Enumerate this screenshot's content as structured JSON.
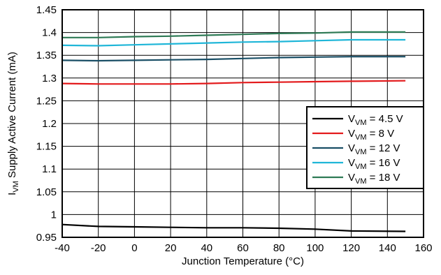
{
  "chart_data": {
    "type": "line",
    "xlabel": "Junction Temperature (°C)",
    "ylabel": {
      "prefix": "I",
      "sub": "VM",
      "rest": " Supply Active Current (mA)"
    },
    "xlim": [
      -40,
      160
    ],
    "ylim": [
      0.95,
      1.45
    ],
    "x_ticks": [
      -40,
      -20,
      0,
      20,
      40,
      60,
      80,
      100,
      120,
      140,
      160
    ],
    "y_ticks": [
      0.95,
      1,
      1.05,
      1.1,
      1.15,
      1.2,
      1.25,
      1.3,
      1.35,
      1.4,
      1.45
    ],
    "x_tick_labels": [
      "-40",
      "-20",
      "0",
      "20",
      "40",
      "60",
      "80",
      "100",
      "120",
      "140",
      "160"
    ],
    "y_tick_labels": [
      "0.95",
      "1",
      "1.05",
      "1.1",
      "1.15",
      "1.2",
      "1.25",
      "1.3",
      "1.35",
      "1.4",
      "1.45"
    ],
    "grid": true,
    "legend_position": "right",
    "series": [
      {
        "label_prefix": "V",
        "label_sub": "VM",
        "label_rest": " = 4.5 V",
        "color": "#000000",
        "x": [
          -40,
          -20,
          0,
          20,
          40,
          60,
          80,
          100,
          120,
          150
        ],
        "y": [
          0.978,
          0.974,
          0.973,
          0.972,
          0.971,
          0.971,
          0.97,
          0.968,
          0.964,
          0.963
        ]
      },
      {
        "label_prefix": "V",
        "label_sub": "VM",
        "label_rest": " = 8 V",
        "color": "#e31a1c",
        "x": [
          -40,
          -20,
          0,
          20,
          40,
          60,
          80,
          100,
          120,
          150
        ],
        "y": [
          1.288,
          1.287,
          1.287,
          1.287,
          1.288,
          1.29,
          1.291,
          1.292,
          1.293,
          1.294
        ]
      },
      {
        "label_prefix": "V",
        "label_sub": "VM",
        "label_rest": " = 12 V",
        "color": "#1a4f66",
        "x": [
          -40,
          -20,
          0,
          20,
          40,
          60,
          80,
          100,
          120,
          150
        ],
        "y": [
          1.339,
          1.338,
          1.339,
          1.34,
          1.341,
          1.343,
          1.345,
          1.346,
          1.347,
          1.347
        ]
      },
      {
        "label_prefix": "V",
        "label_sub": "VM",
        "label_rest": " = 16 V",
        "color": "#1fb6d8",
        "x": [
          -40,
          -20,
          0,
          20,
          40,
          60,
          80,
          100,
          120,
          150
        ],
        "y": [
          1.372,
          1.371,
          1.373,
          1.375,
          1.377,
          1.379,
          1.38,
          1.382,
          1.384,
          1.384
        ]
      },
      {
        "label_prefix": "V",
        "label_sub": "VM",
        "label_rest": " = 18 V",
        "color": "#2e7a55",
        "x": [
          -40,
          -20,
          0,
          20,
          40,
          60,
          80,
          100,
          120,
          150
        ],
        "y": [
          1.389,
          1.389,
          1.391,
          1.392,
          1.394,
          1.396,
          1.398,
          1.399,
          1.401,
          1.401
        ]
      }
    ]
  }
}
